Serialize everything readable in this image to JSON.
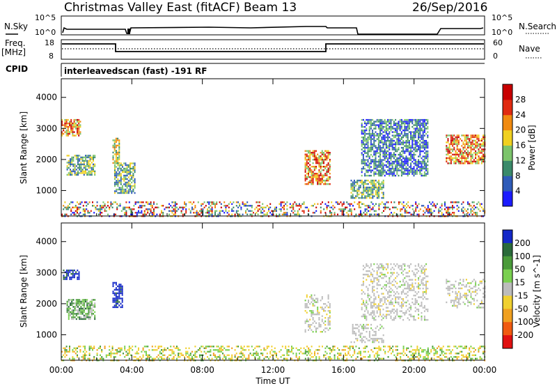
{
  "header": {
    "title": "Christmas Valley East (fitACF)",
    "beam": "Beam 13",
    "date": "26/Sep/2016"
  },
  "strip_panels": {
    "nsky": {
      "left_label": "N.Sky",
      "right_label": "N.Search",
      "left_ticks": [
        "10^5",
        "10^0"
      ],
      "right_ticks": [
        "10^5",
        "10^0"
      ]
    },
    "freq": {
      "left_label_line1": "Freq.",
      "left_label_line2": "[MHz]",
      "right_label": "Nave",
      "left_ticks": [
        "18",
        "8"
      ],
      "right_ticks": [
        "60",
        "0"
      ]
    },
    "cpid": {
      "label": "CPID",
      "text": "interleavedscan (fast) -191 RF"
    }
  },
  "chart_data": [
    {
      "type": "heatmap",
      "title": "",
      "parameter": "Power",
      "xlabel": "",
      "ylabel": "Slant Range [km]",
      "xlim": [
        0,
        24
      ],
      "ylim": [
        180,
        4600
      ],
      "colorbar": {
        "label": "Power [dB]",
        "ticks": [
          "4",
          "8",
          "12",
          "16",
          "20",
          "24",
          "28"
        ],
        "colors": [
          "#1c1cff",
          "#2f5bb8",
          "#3a8a6a",
          "#7cc46b",
          "#f0d020",
          "#f08a10",
          "#e02a10",
          "#c80000"
        ]
      },
      "regions": [
        {
          "t0": 0.0,
          "t1": 1.1,
          "r0": 2750,
          "r1": 3300,
          "level": "high"
        },
        {
          "t0": 0.3,
          "t1": 1.9,
          "r0": 1500,
          "r1": 2150,
          "level": "mid"
        },
        {
          "t0": 2.9,
          "t1": 3.3,
          "r0": 1900,
          "r1": 2700,
          "level": "mid-high"
        },
        {
          "t0": 3.0,
          "t1": 4.2,
          "r0": 900,
          "r1": 1900,
          "level": "mid"
        },
        {
          "t0": 13.8,
          "t1": 15.2,
          "r0": 1200,
          "r1": 2300,
          "level": "high"
        },
        {
          "t0": 16.4,
          "t1": 18.3,
          "r0": 750,
          "r1": 1350,
          "level": "mid"
        },
        {
          "t0": 17.0,
          "t1": 20.8,
          "r0": 1500,
          "r1": 3300,
          "level": "low-mid"
        },
        {
          "t0": 21.8,
          "t1": 24.0,
          "r0": 1900,
          "r1": 2800,
          "level": "high"
        },
        {
          "t0": 0.0,
          "t1": 24.0,
          "r0": 200,
          "r1": 650,
          "level": "ground"
        }
      ]
    },
    {
      "type": "heatmap",
      "title": "",
      "parameter": "Velocity",
      "xlabel": "Time UT",
      "ylabel": "Slant Range [km]",
      "xlim": [
        0,
        24
      ],
      "ylim": [
        180,
        4600
      ],
      "x_ticks": [
        "00:00",
        "04:00",
        "08:00",
        "12:00",
        "16:00",
        "20:00",
        "00:00"
      ],
      "y_ticks": [
        "1000",
        "2000",
        "3000",
        "4000"
      ],
      "colorbar": {
        "label": "Velocity [m s^-1]",
        "ticks": [
          "200",
          "100",
          "50",
          "15",
          "-15",
          "-50",
          "-100",
          "-200"
        ],
        "colors": [
          "#1428c8",
          "#2a6a3a",
          "#4a9a3a",
          "#7ad050",
          "#bcbcbc",
          "#f0d030",
          "#f0a020",
          "#f05a10",
          "#e01010"
        ]
      },
      "regions": [
        {
          "t0": 0.1,
          "t1": 1.0,
          "r0": 2800,
          "r1": 3100,
          "level": "positive-high"
        },
        {
          "t0": 0.3,
          "t1": 1.9,
          "r0": 1500,
          "r1": 2150,
          "level": "mixed"
        },
        {
          "t0": 2.9,
          "t1": 3.5,
          "r0": 1900,
          "r1": 2700,
          "level": "positive-high"
        },
        {
          "t0": 13.8,
          "t1": 15.2,
          "r0": 1100,
          "r1": 2300,
          "level": "ground"
        },
        {
          "t0": 16.4,
          "t1": 18.3,
          "r0": 750,
          "r1": 1350,
          "level": "ground"
        },
        {
          "t0": 17.0,
          "t1": 20.8,
          "r0": 1500,
          "r1": 3300,
          "level": "ground"
        },
        {
          "t0": 21.8,
          "t1": 24.0,
          "r0": 1900,
          "r1": 2800,
          "level": "ground"
        },
        {
          "t0": 0.0,
          "t1": 24.0,
          "r0": 200,
          "r1": 650,
          "level": "low-velocity"
        }
      ]
    }
  ]
}
